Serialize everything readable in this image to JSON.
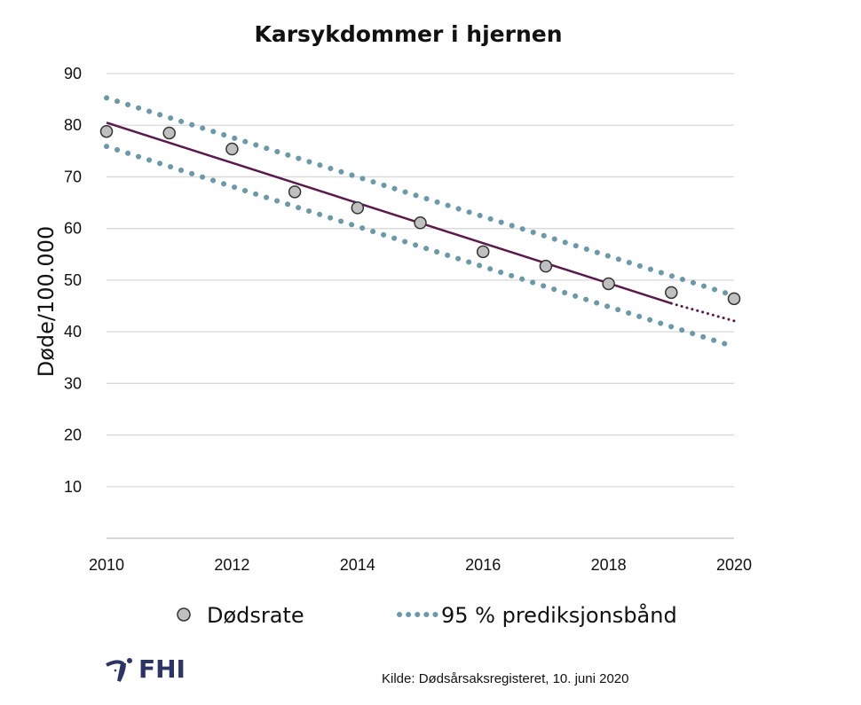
{
  "chart_data": {
    "type": "scatter",
    "title": "Karsykdommer i hjernen",
    "ylabel": "Døde/100.000",
    "xlabel": "",
    "xlim": [
      2010,
      2020
    ],
    "ylim": [
      0,
      90
    ],
    "xticks": [
      2010,
      2012,
      2014,
      2016,
      2018,
      2020
    ],
    "yticks": [
      10,
      20,
      30,
      40,
      50,
      60,
      70,
      80,
      90
    ],
    "grid": "horizontal",
    "legend_position": "bottom",
    "series": [
      {
        "name": "Dødsrate",
        "kind": "points",
        "color": "#c0c0c0",
        "x": [
          2010,
          2011,
          2012,
          2013,
          2014,
          2015,
          2016,
          2017,
          2018,
          2019,
          2020
        ],
        "y": [
          78.8,
          78.5,
          75.4,
          67.1,
          64.0,
          61.1,
          55.5,
          52.7,
          49.3,
          47.6,
          46.4
        ]
      },
      {
        "kind": "trend",
        "color": "#5a1a4a",
        "x": [
          2010,
          2019
        ],
        "y": [
          80.5,
          45.5
        ],
        "forecast": {
          "x": [
            2019,
            2020
          ],
          "y": [
            45.5,
            42.1
          ]
        }
      },
      {
        "name": "95 % prediksjonsbånd",
        "kind": "band",
        "color": "#6a9aaa",
        "upper": {
          "x": [
            2010,
            2020
          ],
          "y": [
            85.3,
            47.0
          ]
        },
        "lower": {
          "x": [
            2010,
            2020
          ],
          "y": [
            75.9,
            37.1
          ]
        }
      }
    ]
  },
  "source": "Kilde: Dødsårsaksregisteret, 10. juni 2020",
  "logo": "FHI"
}
